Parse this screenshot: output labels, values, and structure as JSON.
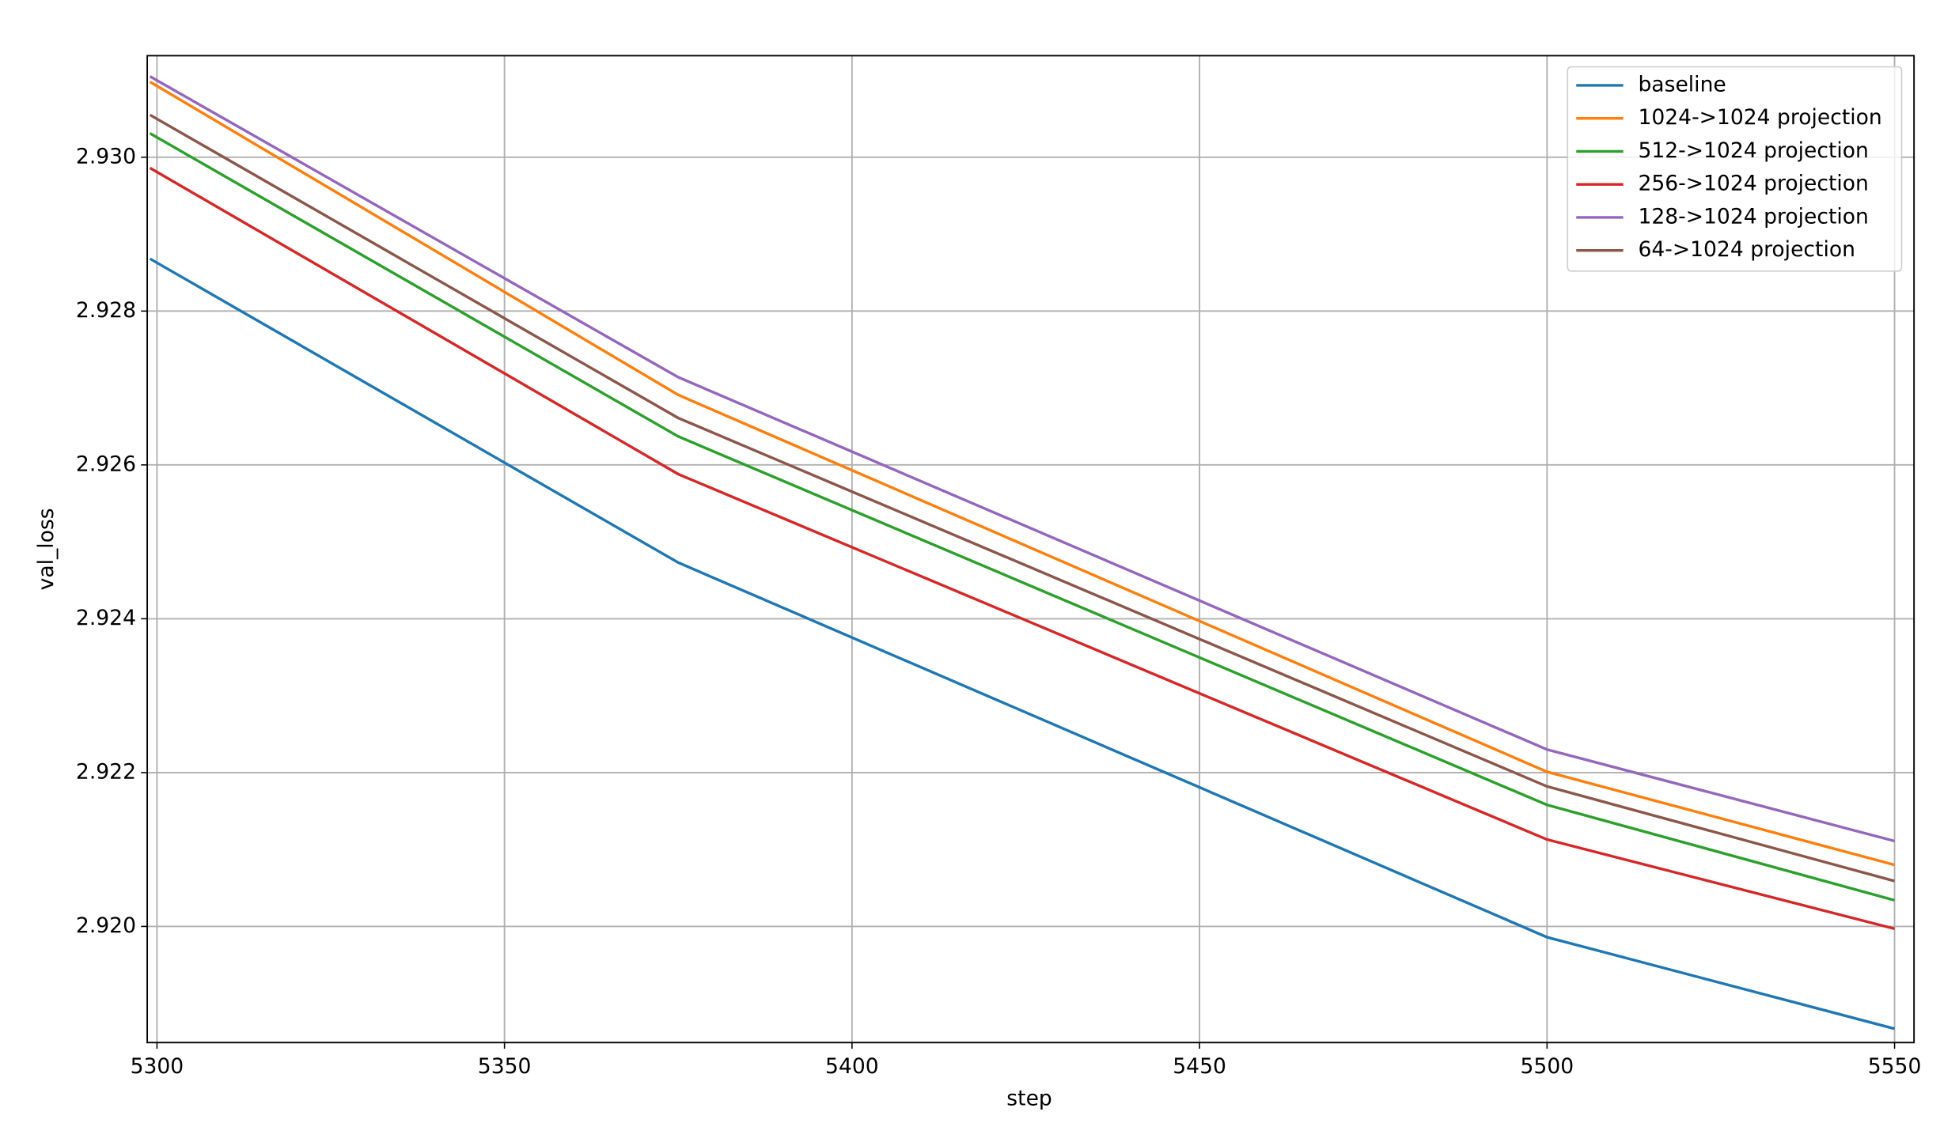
{
  "chart_data": {
    "type": "line",
    "x_label": "step",
    "y_label": "val_loss",
    "x": [
      5299,
      5375,
      5500,
      5550
    ],
    "series": [
      {
        "name": "baseline",
        "color": "#1f77b4",
        "values": [
          2.92868,
          2.92473,
          2.91986,
          2.91867
        ]
      },
      {
        "name": "1024->1024 projection",
        "color": "#ff7f0e",
        "values": [
          2.93098,
          2.92691,
          2.92201,
          2.9208
        ]
      },
      {
        "name": "512->1024 projection",
        "color": "#2ca02c",
        "values": [
          2.93031,
          2.92637,
          2.92158,
          2.92034
        ]
      },
      {
        "name": "256->1024 projection",
        "color": "#d62728",
        "values": [
          2.92986,
          2.92588,
          2.92113,
          2.91997
        ]
      },
      {
        "name": "128->1024 projection",
        "color": "#9467bd",
        "values": [
          2.93105,
          2.92714,
          2.9223,
          2.92111
        ]
      },
      {
        "name": "64->1024 projection",
        "color": "#8c564b",
        "values": [
          2.93055,
          2.92661,
          2.92182,
          2.92059
        ]
      }
    ],
    "xlim": [
      5298.6,
      5552.8
    ],
    "ylim": [
      2.91849,
      2.93132
    ],
    "xticks": [
      5300,
      5350,
      5400,
      5450,
      5500,
      5550
    ],
    "yticks": [
      {
        "value": 2.92,
        "label": "2.920"
      },
      2.922,
      2.924,
      2.926,
      2.928,
      {
        "value": 2.93,
        "label": "2.930"
      }
    ],
    "grid": true,
    "legend": "upper right"
  }
}
